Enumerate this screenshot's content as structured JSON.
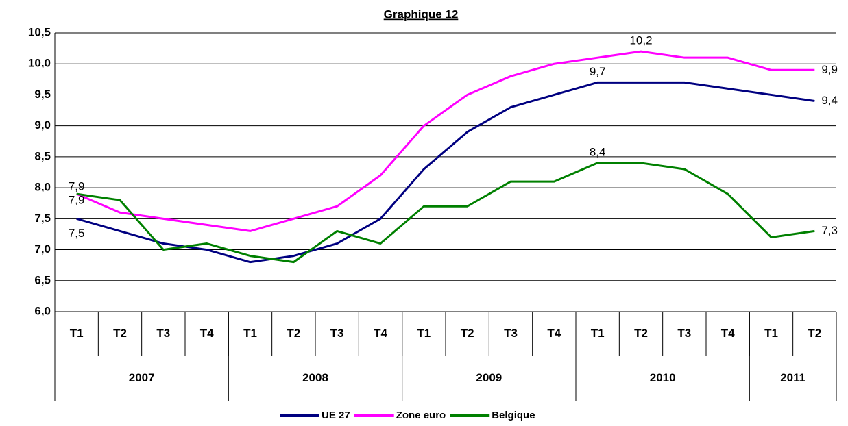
{
  "chart_data": {
    "type": "line",
    "title": "Graphique 12",
    "categories": [
      "T1",
      "T2",
      "T3",
      "T4",
      "T1",
      "T2",
      "T3",
      "T4",
      "T1",
      "T2",
      "T3",
      "T4",
      "T1",
      "T2",
      "T3",
      "T4",
      "T1",
      "T2"
    ],
    "category_groups": [
      {
        "label": "2007",
        "size": 4
      },
      {
        "label": "2008",
        "size": 4
      },
      {
        "label": "2009",
        "size": 4
      },
      {
        "label": "2010",
        "size": 4
      },
      {
        "label": "2011",
        "size": 2
      }
    ],
    "series": [
      {
        "name": "UE 27",
        "color": "#000080",
        "values": [
          7.5,
          7.3,
          7.1,
          7.0,
          6.8,
          6.9,
          7.1,
          7.5,
          8.3,
          8.9,
          9.3,
          9.5,
          9.7,
          9.7,
          9.7,
          9.6,
          9.5,
          9.4
        ],
        "value_labels": [
          "7,5",
          null,
          null,
          null,
          null,
          null,
          null,
          null,
          null,
          null,
          null,
          null,
          "9,7",
          null,
          null,
          null,
          null,
          "9,4"
        ]
      },
      {
        "name": "Zone euro",
        "color": "#ff00ff",
        "values": [
          7.9,
          7.6,
          7.5,
          7.4,
          7.3,
          7.5,
          7.7,
          8.2,
          9.0,
          9.5,
          9.8,
          10.0,
          10.1,
          10.2,
          10.1,
          10.1,
          9.9,
          9.9
        ],
        "value_labels": [
          "7,9",
          null,
          null,
          null,
          null,
          null,
          null,
          null,
          null,
          null,
          null,
          null,
          null,
          "10,2",
          null,
          null,
          null,
          "9,9"
        ]
      },
      {
        "name": "Belgique",
        "color": "#008000",
        "values": [
          7.9,
          7.8,
          7.0,
          7.1,
          6.9,
          6.8,
          7.3,
          7.1,
          7.7,
          7.7,
          8.1,
          8.1,
          8.4,
          8.4,
          8.3,
          7.9,
          7.2,
          7.3
        ],
        "value_labels": [
          "7,9",
          null,
          null,
          null,
          null,
          null,
          null,
          null,
          null,
          null,
          null,
          null,
          "8,4",
          null,
          null,
          null,
          null,
          "7,3"
        ]
      }
    ],
    "ylim": [
      6.0,
      10.5
    ],
    "yticks": [
      {
        "value": 6.0,
        "label": "6,0"
      },
      {
        "value": 6.5,
        "label": "6,5"
      },
      {
        "value": 7.0,
        "label": "7,0"
      },
      {
        "value": 7.5,
        "label": "7,5"
      },
      {
        "value": 8.0,
        "label": "8,0"
      },
      {
        "value": 8.5,
        "label": "8,5"
      },
      {
        "value": 9.0,
        "label": "9,0"
      },
      {
        "value": 9.5,
        "label": "9,5"
      },
      {
        "value": 10.0,
        "label": "10,0"
      },
      {
        "value": 10.5,
        "label": "10,5"
      }
    ],
    "grid": true,
    "legend": "bottom"
  }
}
